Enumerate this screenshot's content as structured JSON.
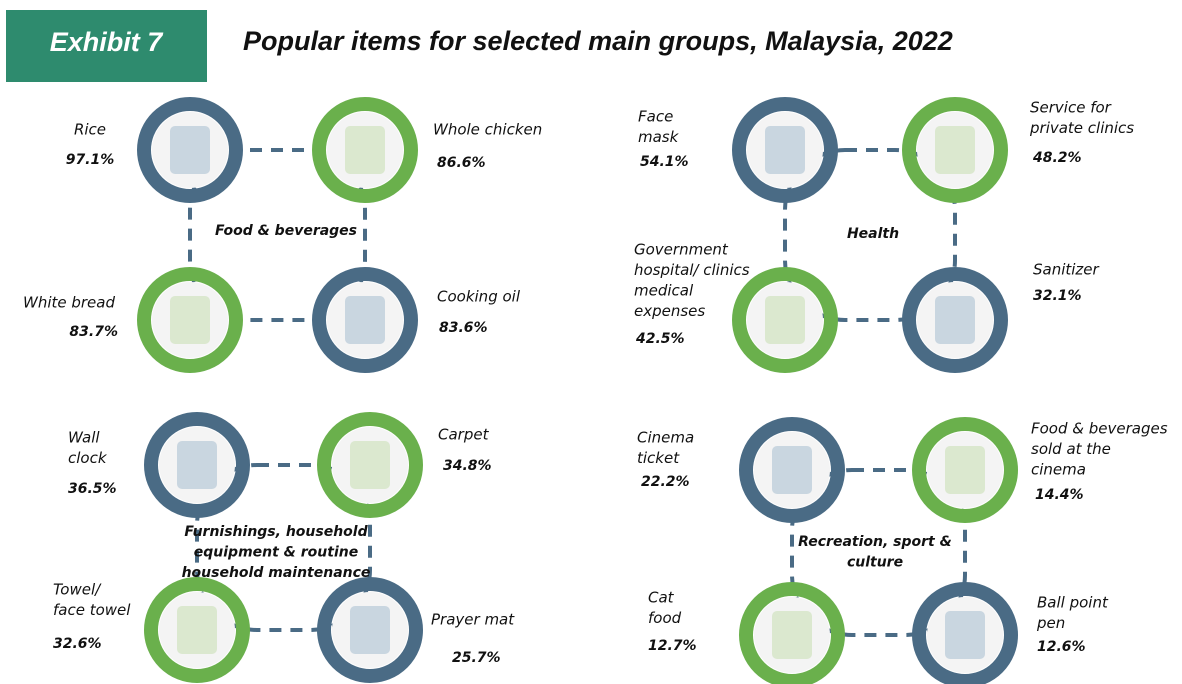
{
  "header": {
    "exhibit": "Exhibit 7",
    "title": "Popular items for selected main groups, Malaysia, 2022"
  },
  "groups": [
    {
      "label": [
        "Food & beverages"
      ],
      "items": [
        {
          "name": [
            "Rice"
          ],
          "value": "97.1%"
        },
        {
          "name": [
            "Whole chicken"
          ],
          "value": "86.6%"
        },
        {
          "name": [
            "White bread"
          ],
          "value": "83.7%"
        },
        {
          "name": [
            "Cooking oil"
          ],
          "value": "83.6%"
        }
      ]
    },
    {
      "label": [
        "Health"
      ],
      "items": [
        {
          "name": [
            "Face",
            "mask"
          ],
          "value": "54.1%"
        },
        {
          "name": [
            "Service for",
            "private clinics"
          ],
          "value": "48.2%"
        },
        {
          "name": [
            "Government",
            "hospital/ clinics",
            "medical",
            "expenses"
          ],
          "value": "42.5%"
        },
        {
          "name": [
            "Sanitizer"
          ],
          "value": "32.1%"
        }
      ]
    },
    {
      "label": [
        "Furnishings, household",
        "equipment & routine",
        "household maintenance"
      ],
      "items": [
        {
          "name": [
            "Wall",
            "clock"
          ],
          "value": "36.5%"
        },
        {
          "name": [
            "Carpet"
          ],
          "value": "34.8%"
        },
        {
          "name": [
            "Towel/",
            "face towel"
          ],
          "value": "32.6%"
        },
        {
          "name": [
            "Prayer mat"
          ],
          "value": "25.7%"
        }
      ]
    },
    {
      "label": [
        "Recreation, sport &",
        "culture"
      ],
      "items": [
        {
          "name": [
            "Cinema",
            "ticket"
          ],
          "value": "22.2%"
        },
        {
          "name": [
            "Food & beverages",
            "sold at the",
            "cinema"
          ],
          "value": "14.4%"
        },
        {
          "name": [
            "Cat",
            "food"
          ],
          "value": "12.7%"
        },
        {
          "name": [
            "Ball point",
            "pen"
          ],
          "value": "12.6%"
        }
      ]
    }
  ]
}
